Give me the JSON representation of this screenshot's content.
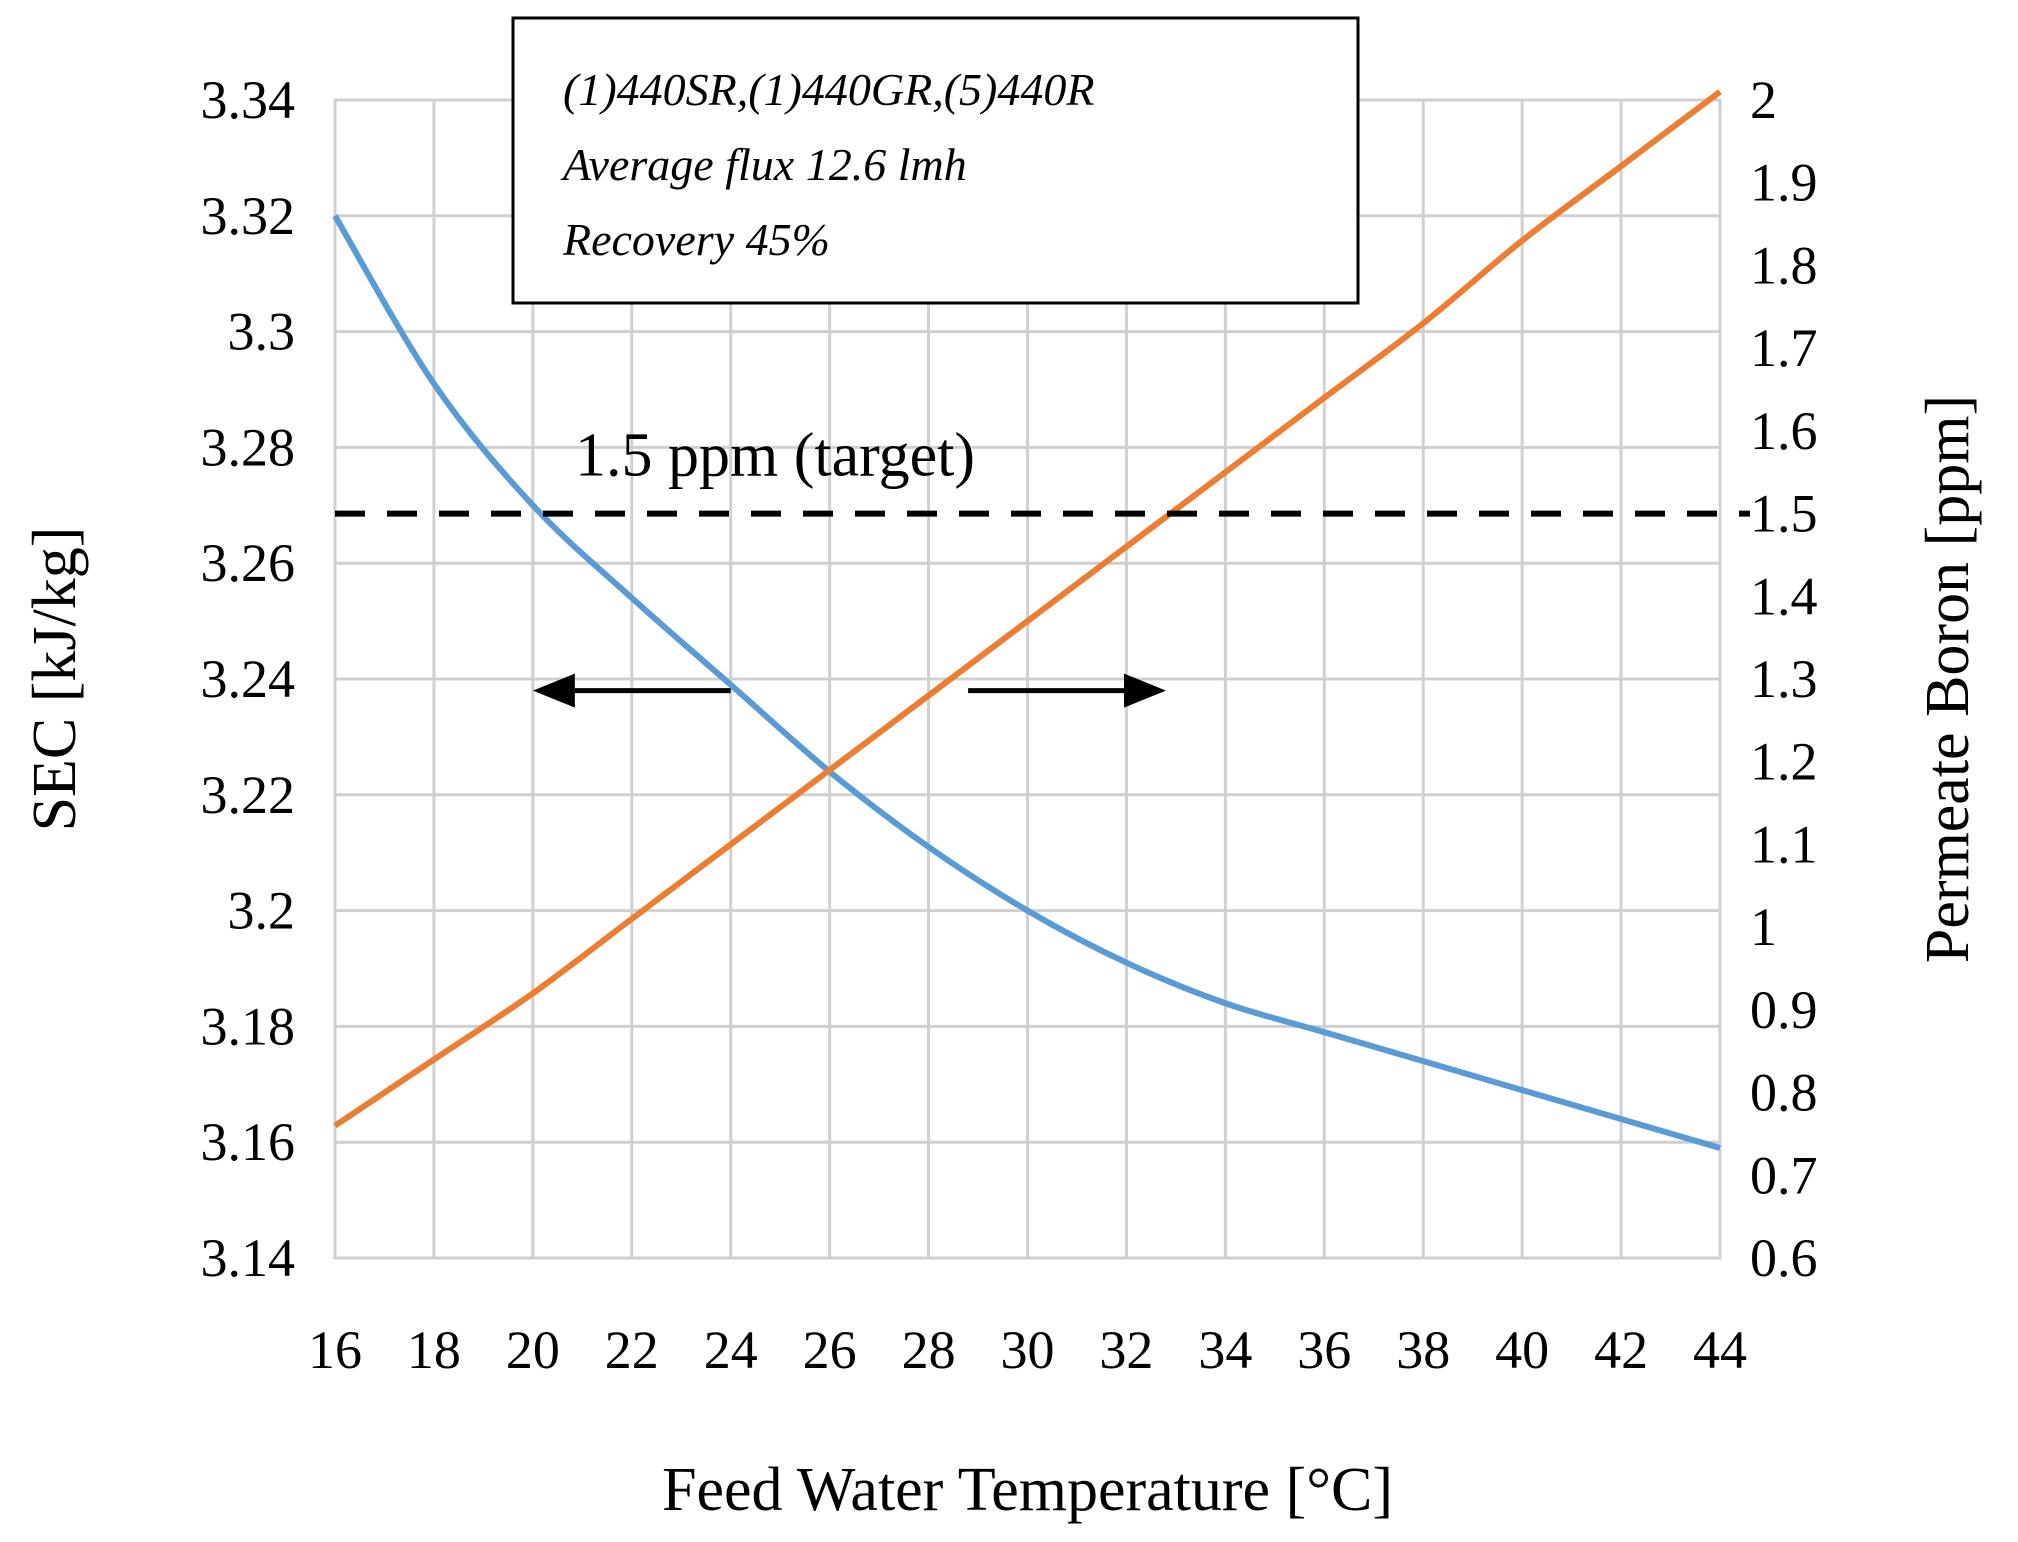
{
  "chart_data": {
    "type": "line",
    "xlabel": "Feed Water Temperature [°C]",
    "ylabel_left": "SEC [kJ/kg]",
    "ylabel_right": "Permeate Boron [ppm]",
    "xlim": [
      16,
      44
    ],
    "x_ticks": [
      "16",
      "18",
      "20",
      "22",
      "24",
      "26",
      "28",
      "30",
      "32",
      "34",
      "36",
      "38",
      "40",
      "42",
      "44"
    ],
    "ylim_left": [
      3.14,
      3.34
    ],
    "y_ticks_left": [
      "3.14",
      "3.16",
      "3.18",
      "3.2",
      "3.22",
      "3.24",
      "3.26",
      "3.28",
      "3.3",
      "3.32",
      "3.34"
    ],
    "ylim_right": [
      0.6,
      2.0
    ],
    "y_ticks_right": [
      "0.6",
      "0.7",
      "0.8",
      "0.9",
      "1",
      "1.1",
      "1.2",
      "1.3",
      "1.4",
      "1.5",
      "1.6",
      "1.7",
      "1.8",
      "1.9",
      "2"
    ],
    "grid": true,
    "series": [
      {
        "name": "SEC",
        "axis": "left",
        "color": "#5b9bd5",
        "x": [
          16,
          18,
          20,
          22,
          24,
          26,
          28,
          30,
          32,
          34,
          36,
          38,
          40,
          42,
          44
        ],
        "y": [
          3.32,
          3.291,
          3.27,
          3.254,
          3.239,
          3.224,
          3.211,
          3.2,
          3.191,
          3.184,
          3.179,
          3.174,
          3.169,
          3.164,
          3.159
        ]
      },
      {
        "name": "Permeate Boron",
        "axis": "right",
        "color": "#ed7d31",
        "x": [
          16,
          18,
          20,
          22,
          24,
          26,
          28,
          30,
          32,
          34,
          36,
          38,
          40,
          42,
          44
        ],
        "y": [
          0.76,
          0.84,
          0.92,
          1.01,
          1.1,
          1.19,
          1.28,
          1.37,
          1.46,
          1.55,
          1.64,
          1.73,
          1.83,
          1.92,
          2.01
        ]
      }
    ],
    "target_line": {
      "value": 1.5,
      "axis": "right",
      "label": "1.5 ppm (target)"
    },
    "arrows": [
      {
        "direction": "left",
        "from_x": 24,
        "to_x": 20,
        "y_left": 3.238
      },
      {
        "direction": "right",
        "from_x": 28.8,
        "to_x": 32.8,
        "y_left": 3.238
      }
    ],
    "legend": {
      "lines": [
        "(1)440SR,(1)440GR,(5)440R",
        "Average flux 12.6 lmh",
        "Recovery 45%"
      ],
      "placement": "top-left"
    }
  }
}
